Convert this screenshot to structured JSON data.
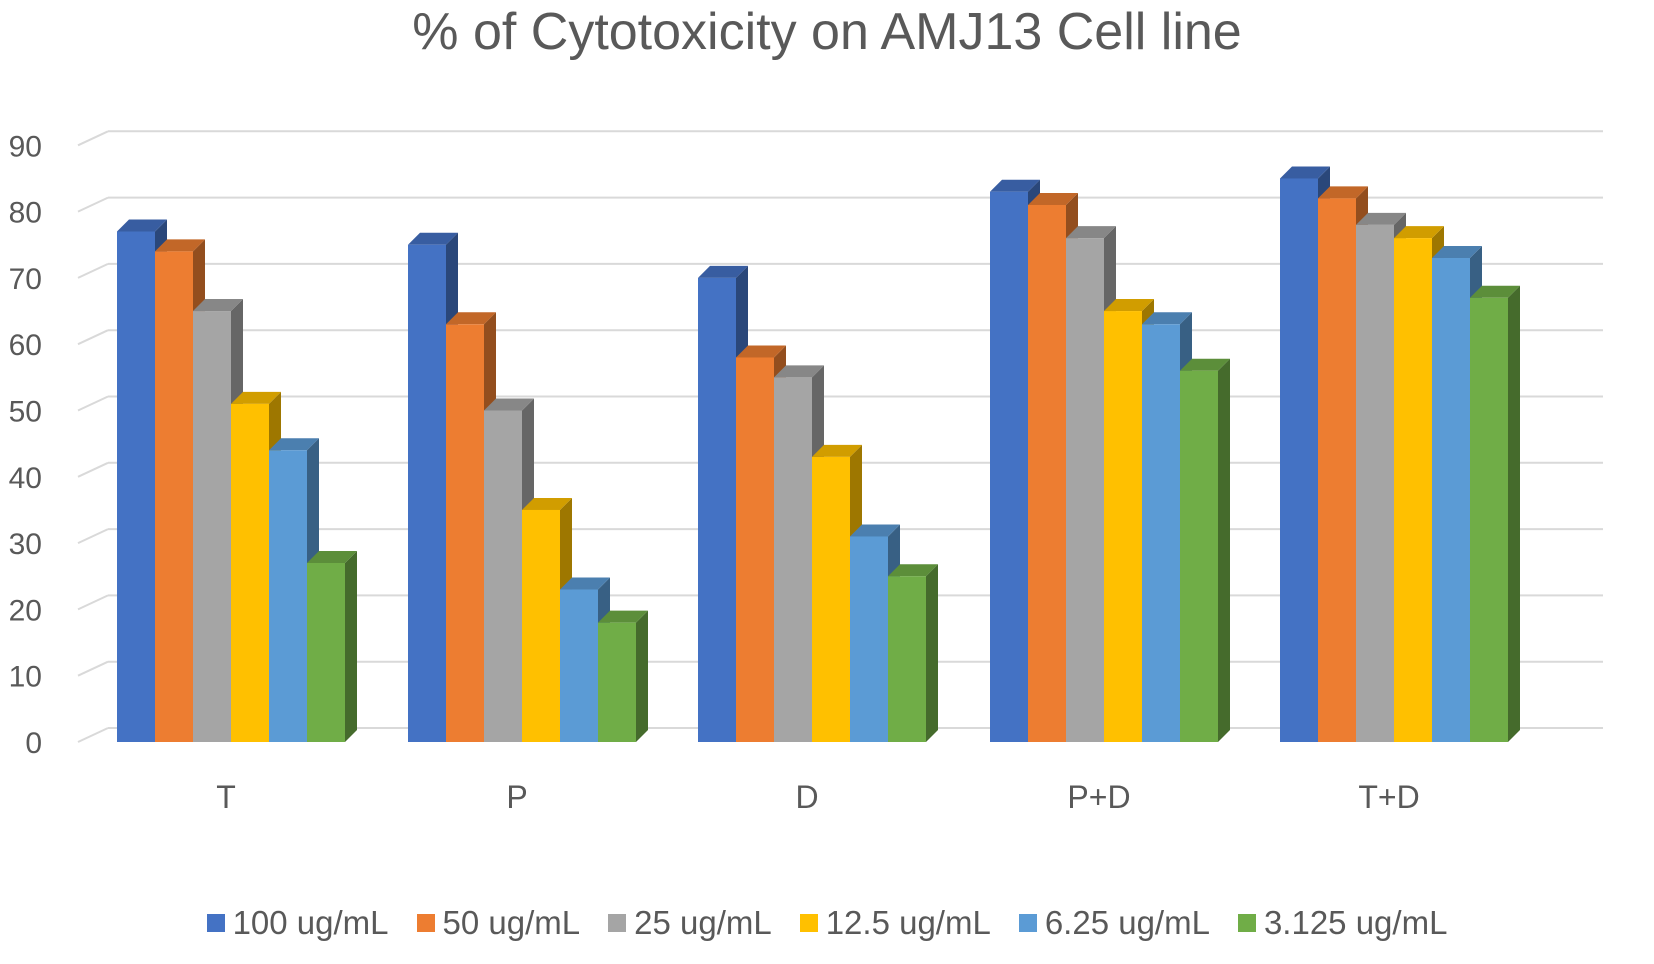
{
  "chart_data": {
    "type": "bar",
    "title": "% of Cytotoxicity on AMJ13 Cell line",
    "xlabel": "",
    "ylabel": "",
    "ylim": [
      0,
      90
    ],
    "yticks": [
      "0",
      "10",
      "20",
      "30",
      "40",
      "50",
      "60",
      "70",
      "80",
      "90"
    ],
    "categories": [
      "T",
      "P",
      "D",
      "P+D",
      "T+D"
    ],
    "series": [
      {
        "name": "100 ug/mL",
        "color": "#4472C4",
        "values": [
          77,
          75,
          70,
          83,
          85
        ]
      },
      {
        "name": "50 ug/mL",
        "color": "#ED7D31",
        "values": [
          74,
          63,
          58,
          81,
          82
        ]
      },
      {
        "name": "25 ug/mL",
        "color": "#A5A5A5",
        "values": [
          65,
          50,
          55,
          76,
          78
        ]
      },
      {
        "name": "12.5 ug/mL",
        "color": "#FFC000",
        "values": [
          51,
          35,
          43,
          65,
          76
        ]
      },
      {
        "name": "6.25 ug/mL",
        "color": "#5B9BD5",
        "values": [
          44,
          23,
          31,
          63,
          73
        ]
      },
      {
        "name": "3.125 ug/mL",
        "color": "#70AD47",
        "values": [
          27,
          18,
          25,
          56,
          67
        ]
      }
    ],
    "grid": true,
    "legend_position": "bottom",
    "style": "3d-bar"
  }
}
